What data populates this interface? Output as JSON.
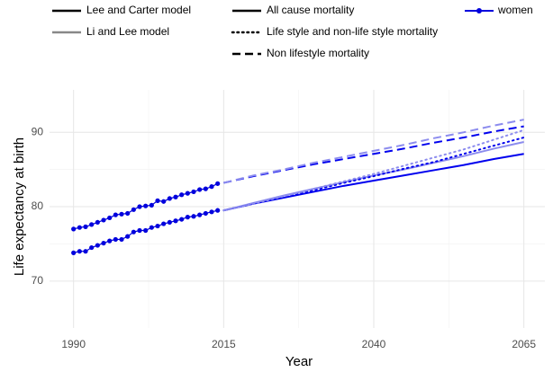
{
  "chart_data": {
    "type": "line",
    "x_label": "Year",
    "y_label": "Life expectancy at birth",
    "xlim": [
      1986,
      2068.5
    ],
    "ylim": [
      63.7,
      95.7
    ],
    "xticks": [
      1990,
      2015,
      2040,
      2065
    ],
    "yticks": [
      70,
      80,
      90
    ],
    "minor_xticks": [
      2002.5,
      2027.5,
      2052.5
    ],
    "minor_yticks": [
      75,
      85
    ],
    "grid": true,
    "legend": {
      "models": [
        {
          "name": "Lee and Carter model",
          "color": "#000000"
        },
        {
          "name": "Li and Lee model",
          "color": "#888888"
        }
      ],
      "causes": [
        {
          "name": "All cause mortality",
          "dash": "solid"
        },
        {
          "name": "Life style and non-life style mortality",
          "dash": "dotted"
        },
        {
          "name": "Non lifestyle mortality",
          "dash": "dashed"
        }
      ]
    },
    "series": [
      {
        "name": "women",
        "color": "#0000dd",
        "marker": true,
        "x": [
          1990,
          1991,
          1992,
          1993,
          1994,
          1995,
          1996,
          1997,
          1998,
          1999,
          2000,
          2001,
          2002,
          2003,
          2004,
          2005,
          2006,
          2007,
          2008,
          2009,
          2010,
          2011,
          2012,
          2013,
          2014
        ],
        "values": [
          77.0,
          77.2,
          77.3,
          77.6,
          77.9,
          78.2,
          78.5,
          78.9,
          79.0,
          79.1,
          79.6,
          80.0,
          80.1,
          80.2,
          80.8,
          80.7,
          81.1,
          81.3,
          81.6,
          81.8,
          82.0,
          82.3,
          82.4,
          82.7,
          83.1
        ]
      },
      {
        "name": "women",
        "color": "#0000dd",
        "marker": true,
        "x": [
          1990,
          1991,
          1992,
          1993,
          1994,
          1995,
          1996,
          1997,
          1998,
          1999,
          2000,
          2001,
          2002,
          2003,
          2004,
          2005,
          2006,
          2007,
          2008,
          2009,
          2010,
          2011,
          2012,
          2013,
          2014
        ],
        "values": [
          73.8,
          74.0,
          74.0,
          74.5,
          74.8,
          75.1,
          75.4,
          75.6,
          75.6,
          76.0,
          76.6,
          76.8,
          76.8,
          77.2,
          77.4,
          77.7,
          77.9,
          78.1,
          78.3,
          78.6,
          78.7,
          78.9,
          79.1,
          79.3,
          79.5
        ]
      },
      {
        "model": "Lee and Carter model",
        "cause": "All cause mortality",
        "color": "#0000ee",
        "x": [
          2015,
          2020,
          2025,
          2030,
          2035,
          2040,
          2045,
          2050,
          2055,
          2060,
          2065
        ],
        "values": [
          79.5,
          80.4,
          81.2,
          82.0,
          82.8,
          83.5,
          84.2,
          84.9,
          85.6,
          86.4,
          87.1
        ]
      },
      {
        "model": "Li and Lee model",
        "cause": "All cause mortality",
        "color": "#8c8cee",
        "x": [
          2015,
          2020,
          2025,
          2030,
          2035,
          2040,
          2045,
          2050,
          2055,
          2060,
          2065
        ],
        "values": [
          79.5,
          80.5,
          81.5,
          82.4,
          83.3,
          84.2,
          85.0,
          85.9,
          86.8,
          87.8,
          88.7
        ]
      },
      {
        "model": "Lee and Carter model",
        "cause": "Life style and non-life style mortality",
        "color": "#0000ee",
        "x": [
          2015,
          2020,
          2025,
          2030,
          2035,
          2040,
          2045,
          2050,
          2055,
          2060,
          2065
        ],
        "values": [
          79.5,
          80.4,
          81.3,
          82.2,
          83.2,
          84.1,
          85.1,
          86.0,
          87.1,
          88.2,
          89.3
        ]
      },
      {
        "model": "Li and Lee model",
        "cause": "Life style and non-life style mortality",
        "color": "#8c8cee",
        "x": [
          2015,
          2020,
          2025,
          2030,
          2035,
          2040,
          2045,
          2050,
          2055,
          2060,
          2065
        ],
        "values": [
          79.5,
          80.4,
          81.4,
          82.4,
          83.4,
          84.4,
          85.5,
          86.6,
          87.7,
          89.0,
          90.3
        ]
      },
      {
        "model": "Lee and Carter model",
        "cause": "Non lifestyle mortality",
        "color": "#0000ee",
        "x": [
          2015,
          2020,
          2025,
          2030,
          2035,
          2040,
          2045,
          2050,
          2055,
          2060,
          2065
        ],
        "values": [
          83.2,
          84.1,
          84.9,
          85.7,
          86.4,
          87.1,
          87.8,
          88.6,
          89.3,
          90.1,
          90.8
        ]
      },
      {
        "model": "Li and Lee model",
        "cause": "Non lifestyle mortality",
        "color": "#8c8cee",
        "x": [
          2015,
          2020,
          2025,
          2030,
          2035,
          2040,
          2045,
          2050,
          2055,
          2060,
          2065
        ],
        "values": [
          83.2,
          84.2,
          85.0,
          85.9,
          86.7,
          87.5,
          88.3,
          89.2,
          90.0,
          90.9,
          91.7
        ]
      }
    ]
  }
}
